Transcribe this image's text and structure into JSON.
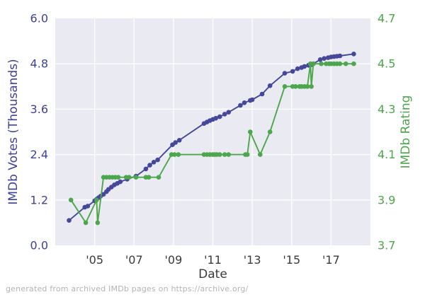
{
  "figure": {
    "footer": "generated from archived IMDb pages on https://archive.org/"
  },
  "colors": {
    "votes_purple": "#45479B",
    "votes_label_purple": "#3F3F9C",
    "rating_green": "#4CA64C",
    "plot_background": "#EAEAF2",
    "gridline": "#FFFFFF",
    "x_tick_gray": "#3A3A3A",
    "footer_gray": "#B3B3B3"
  },
  "chart_data": {
    "type": "line",
    "title": "",
    "xlabel": "Date",
    "ylabel_left": "IMDb Votes (Thousands)",
    "ylabel_right": "IMDb Rating",
    "grid": true,
    "legend": "none",
    "xlim": [
      2003,
      2019
    ],
    "ylim_left": [
      0.0,
      6.0
    ],
    "ylim_right": [
      3.7,
      4.7
    ],
    "x_ticks": [
      {
        "value": 2005,
        "label": "'05"
      },
      {
        "value": 2007,
        "label": "'07"
      },
      {
        "value": 2009,
        "label": "'09"
      },
      {
        "value": 2011,
        "label": "'11"
      },
      {
        "value": 2013,
        "label": "'13"
      },
      {
        "value": 2015,
        "label": "'15"
      },
      {
        "value": 2017,
        "label": "'17"
      }
    ],
    "y_ticks_left": [
      {
        "value": 0.0,
        "label": "0.0"
      },
      {
        "value": 1.2,
        "label": "1.2"
      },
      {
        "value": 2.4,
        "label": "2.4"
      },
      {
        "value": 3.6,
        "label": "3.6"
      },
      {
        "value": 4.8,
        "label": "4.8"
      },
      {
        "value": 6.0,
        "label": "6.0"
      }
    ],
    "y_ticks_right": [
      {
        "value": 3.7,
        "label": "3.7"
      },
      {
        "value": 3.9,
        "label": "3.9"
      },
      {
        "value": 4.1,
        "label": "4.1"
      },
      {
        "value": 4.3,
        "label": "4.3"
      },
      {
        "value": 4.5,
        "label": "4.5"
      },
      {
        "value": 4.7,
        "label": "4.7"
      }
    ],
    "series": [
      {
        "name": "IMDb Votes (Thousands)",
        "axis": "left",
        "color": "#45479B",
        "marker": "circle",
        "points": [
          [
            2003.7,
            0.66
          ],
          [
            2004.5,
            1.01
          ],
          [
            2004.65,
            1.04
          ],
          [
            2005.0,
            1.18
          ],
          [
            2005.1,
            1.22
          ],
          [
            2005.2,
            1.26
          ],
          [
            2005.3,
            1.3
          ],
          [
            2005.45,
            1.35
          ],
          [
            2005.6,
            1.42
          ],
          [
            2005.7,
            1.48
          ],
          [
            2005.85,
            1.54
          ],
          [
            2006.0,
            1.6
          ],
          [
            2006.15,
            1.64
          ],
          [
            2006.3,
            1.68
          ],
          [
            2006.65,
            1.75
          ],
          [
            2007.1,
            1.83
          ],
          [
            2007.6,
            2.02
          ],
          [
            2007.8,
            2.12
          ],
          [
            2008.0,
            2.2
          ],
          [
            2008.2,
            2.26
          ],
          [
            2008.95,
            2.66
          ],
          [
            2009.1,
            2.72
          ],
          [
            2009.3,
            2.78
          ],
          [
            2010.55,
            3.22
          ],
          [
            2010.7,
            3.26
          ],
          [
            2010.85,
            3.3
          ],
          [
            2011.0,
            3.33
          ],
          [
            2011.15,
            3.36
          ],
          [
            2011.35,
            3.4
          ],
          [
            2011.6,
            3.47
          ],
          [
            2011.8,
            3.52
          ],
          [
            2012.4,
            3.7
          ],
          [
            2012.6,
            3.77
          ],
          [
            2012.9,
            3.83
          ],
          [
            2013.0,
            3.85
          ],
          [
            2013.5,
            4.0
          ],
          [
            2013.9,
            4.22
          ],
          [
            2014.65,
            4.55
          ],
          [
            2015.05,
            4.6
          ],
          [
            2015.3,
            4.67
          ],
          [
            2015.5,
            4.7
          ],
          [
            2015.65,
            4.73
          ],
          [
            2015.85,
            4.76
          ],
          [
            2016.0,
            4.78
          ],
          [
            2016.1,
            4.8
          ],
          [
            2016.45,
            4.91
          ],
          [
            2016.65,
            4.94
          ],
          [
            2016.85,
            4.96
          ],
          [
            2017.0,
            4.98
          ],
          [
            2017.15,
            4.99
          ],
          [
            2017.3,
            5.0
          ],
          [
            2017.45,
            5.01
          ],
          [
            2018.15,
            5.06
          ]
        ]
      },
      {
        "name": "IMDb Rating",
        "axis": "right",
        "color": "#4CA64C",
        "marker": "circle",
        "points": [
          [
            2003.8,
            3.9
          ],
          [
            2004.55,
            3.8
          ],
          [
            2005.1,
            3.9
          ],
          [
            2005.15,
            3.8
          ],
          [
            2005.45,
            4.0
          ],
          [
            2005.6,
            4.0
          ],
          [
            2005.75,
            4.0
          ],
          [
            2005.9,
            4.0
          ],
          [
            2006.05,
            4.0
          ],
          [
            2006.2,
            4.0
          ],
          [
            2006.6,
            4.0
          ],
          [
            2006.75,
            4.0
          ],
          [
            2007.1,
            4.0
          ],
          [
            2007.6,
            4.0
          ],
          [
            2007.75,
            4.0
          ],
          [
            2008.25,
            4.0
          ],
          [
            2008.9,
            4.1
          ],
          [
            2009.05,
            4.1
          ],
          [
            2009.25,
            4.1
          ],
          [
            2010.55,
            4.1
          ],
          [
            2010.7,
            4.1
          ],
          [
            2010.85,
            4.1
          ],
          [
            2011.0,
            4.1
          ],
          [
            2011.1,
            4.1
          ],
          [
            2011.2,
            4.1
          ],
          [
            2011.35,
            4.1
          ],
          [
            2011.6,
            4.1
          ],
          [
            2011.8,
            4.1
          ],
          [
            2012.65,
            4.1
          ],
          [
            2012.75,
            4.1
          ],
          [
            2012.9,
            4.2
          ],
          [
            2013.4,
            4.1
          ],
          [
            2013.9,
            4.2
          ],
          [
            2014.65,
            4.4
          ],
          [
            2015.05,
            4.4
          ],
          [
            2015.2,
            4.4
          ],
          [
            2015.4,
            4.4
          ],
          [
            2015.5,
            4.4
          ],
          [
            2015.65,
            4.4
          ],
          [
            2015.8,
            4.4
          ],
          [
            2015.95,
            4.5
          ],
          [
            2016.0,
            4.4
          ],
          [
            2016.1,
            4.5
          ],
          [
            2016.5,
            4.5
          ],
          [
            2016.75,
            4.5
          ],
          [
            2016.9,
            4.5
          ],
          [
            2017.0,
            4.5
          ],
          [
            2017.15,
            4.5
          ],
          [
            2017.3,
            4.5
          ],
          [
            2017.45,
            4.5
          ],
          [
            2017.75,
            4.5
          ],
          [
            2018.15,
            4.5
          ]
        ]
      }
    ]
  }
}
